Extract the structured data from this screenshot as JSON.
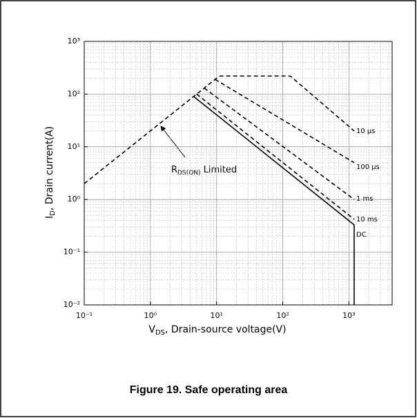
{
  "chart_data": {
    "type": "line",
    "xscale": "log",
    "yscale": "log",
    "grid": true,
    "xlabel_parts": [
      "V",
      "DS",
      ", Drain-source voltage(V)"
    ],
    "ylabel_parts": [
      "I",
      "D",
      ", Drain current(A)"
    ],
    "caption": "Figure 19. Safe operating area",
    "annotation_parts": [
      "R",
      "DS(ON)",
      " Limited"
    ],
    "xlim": [
      0.1,
      4500
    ],
    "ylim": [
      0.01,
      1000
    ],
    "xticks": [
      {
        "value": 0.1,
        "label": "10⁻¹"
      },
      {
        "value": 1,
        "label": "10⁰"
      },
      {
        "value": 10,
        "label": "10¹"
      },
      {
        "value": 100,
        "label": "10²"
      },
      {
        "value": 1000,
        "label": "10³"
      }
    ],
    "yticks": [
      {
        "value": 0.01,
        "label": "10⁻²"
      },
      {
        "value": 0.1,
        "label": "10⁻¹"
      },
      {
        "value": 1,
        "label": "10⁰"
      },
      {
        "value": 10,
        "label": "10¹"
      },
      {
        "value": 100,
        "label": "10²"
      },
      {
        "value": 1000,
        "label": "10³"
      }
    ],
    "limit_line": {
      "x": [
        0.1,
        11
      ],
      "values": [
        2,
        220
      ],
      "color": "#000000",
      "dashed": true
    },
    "series": [
      {
        "name": "10 µs",
        "color": "#000000",
        "dashed": true,
        "x": [
          11,
          130,
          1200
        ],
        "values": [
          220,
          220,
          20
        ]
      },
      {
        "name": "100 µs",
        "color": "#000000",
        "dashed": true,
        "x": [
          9.5,
          1200
        ],
        "values": [
          190,
          5
        ]
      },
      {
        "name": "1 ms",
        "color": "#000000",
        "dashed": true,
        "x": [
          6.5,
          1200
        ],
        "values": [
          130,
          1
        ]
      },
      {
        "name": "10 ms",
        "color": "#000000",
        "dashed": true,
        "x": [
          5,
          1200
        ],
        "values": [
          100,
          0.42
        ]
      },
      {
        "name": "DC",
        "color": "#000000",
        "dashed": false,
        "x": [
          4.5,
          1200,
          1200
        ],
        "values": [
          90,
          0.33,
          0.01
        ]
      }
    ]
  }
}
